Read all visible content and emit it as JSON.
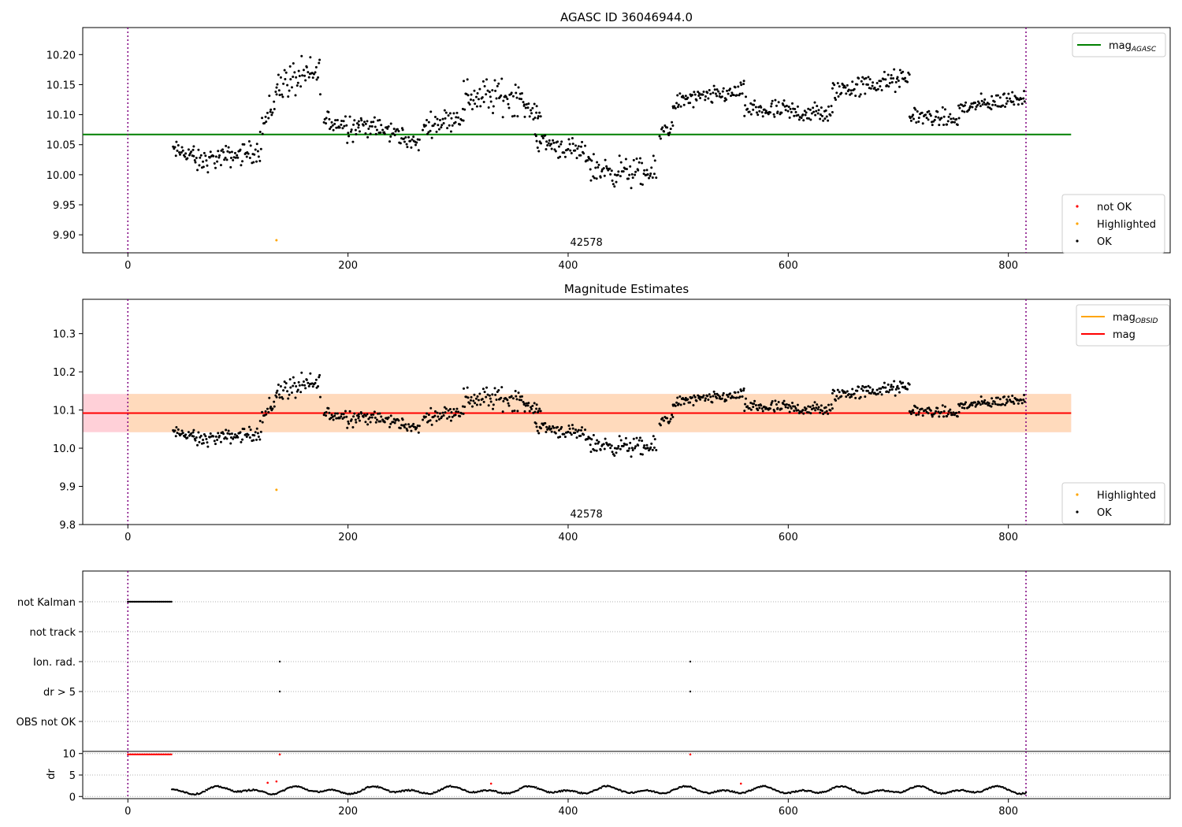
{
  "colors": {
    "ok": "#000000",
    "not_ok": "#ff0000",
    "highlighted": "#ffa500",
    "mag_agasc": "#008000",
    "mag_obsid": "#ffa500",
    "mag": "#ff0000",
    "band_outer": "#ffc0cb",
    "band_inner": "#ffdab9",
    "obs_line": "#800080",
    "grid": "#b0b0b0"
  },
  "chart_data": [
    {
      "type": "scatter",
      "title": "AGASC ID 36046944.0",
      "xlabel": "",
      "ylabel": "",
      "xlim": [
        -41,
        947
      ],
      "ylim": [
        9.87,
        10.245
      ],
      "xticks": [
        "0",
        "200",
        "400",
        "600",
        "800"
      ],
      "yticks": [
        "9.90",
        "9.95",
        "10.00",
        "10.05",
        "10.10",
        "10.15",
        "10.20"
      ],
      "obs_boundaries": [
        0,
        816
      ],
      "obsid_label": {
        "text": "42578",
        "x": 408
      },
      "mag_agasc": 10.067,
      "mag_agasc_x_range": [
        -41,
        857
      ],
      "legend_lines": [
        {
          "key": "mag_agasc",
          "label_main": "mag",
          "label_sub": "AGASC"
        }
      ],
      "legend_points": [
        {
          "key": "not_ok",
          "label": "not OK"
        },
        {
          "key": "highlighted",
          "label": "Highlighted"
        },
        {
          "key": "ok",
          "label": "OK"
        }
      ],
      "legend_lines_position": "upper-right",
      "legend_points_position": "lower-right",
      "highlighted_points": [
        {
          "x": 135,
          "y": 9.891
        }
      ],
      "ok_segments": [
        {
          "x": [
            41,
            60
          ],
          "y": [
            10.04,
            10.035
          ],
          "noise": 0.013
        },
        {
          "x": [
            60,
            120
          ],
          "y": [
            10.02,
            10.04
          ],
          "noise": 0.015
        },
        {
          "x": [
            120,
            135
          ],
          "y": [
            10.07,
            10.13
          ],
          "noise": 0.025
        },
        {
          "x": [
            135,
            175
          ],
          "y": [
            10.15,
            10.17
          ],
          "noise": 0.025
        },
        {
          "x": [
            178,
            210
          ],
          "y": [
            10.09,
            10.08
          ],
          "noise": 0.02
        },
        {
          "x": [
            210,
            250
          ],
          "y": [
            10.085,
            10.065
          ],
          "noise": 0.015
        },
        {
          "x": [
            250,
            265
          ],
          "y": [
            10.06,
            10.05
          ],
          "noise": 0.01
        },
        {
          "x": [
            268,
            305
          ],
          "y": [
            10.08,
            10.1
          ],
          "noise": 0.015
        },
        {
          "x": [
            305,
            360
          ],
          "y": [
            10.13,
            10.13
          ],
          "noise": 0.025
        },
        {
          "x": [
            360,
            375
          ],
          "y": [
            10.11,
            10.1
          ],
          "noise": 0.01
        },
        {
          "x": [
            370,
            420
          ],
          "y": [
            10.06,
            10.03
          ],
          "noise": 0.015
        },
        {
          "x": [
            420,
            480
          ],
          "y": [
            10.01,
            10.0
          ],
          "noise": 0.02
        },
        {
          "x": [
            483,
            495
          ],
          "y": [
            10.07,
            10.08
          ],
          "noise": 0.015
        },
        {
          "x": [
            495,
            560
          ],
          "y": [
            10.12,
            10.14
          ],
          "noise": 0.012
        },
        {
          "x": [
            560,
            640
          ],
          "y": [
            10.11,
            10.1
          ],
          "noise": 0.015
        },
        {
          "x": [
            640,
            710
          ],
          "y": [
            10.14,
            10.16
          ],
          "noise": 0.015
        },
        {
          "x": [
            710,
            755
          ],
          "y": [
            10.1,
            10.09
          ],
          "noise": 0.012
        },
        {
          "x": [
            755,
            815
          ],
          "y": [
            10.11,
            10.13
          ],
          "noise": 0.012
        }
      ]
    },
    {
      "type": "scatter",
      "title": "Magnitude Estimates",
      "xlabel": "",
      "ylabel": "",
      "xlim": [
        -41,
        947
      ],
      "ylim": [
        9.8,
        10.39
      ],
      "xticks": [
        "0",
        "200",
        "400",
        "600",
        "800"
      ],
      "yticks": [
        "9.8",
        "9.9",
        "10.0",
        "10.1",
        "10.2",
        "10.3"
      ],
      "obs_boundaries": [
        0,
        816
      ],
      "obsid_label": {
        "text": "42578",
        "x": 408
      },
      "mag": 10.092,
      "mag_band": [
        10.042,
        10.142
      ],
      "mag_x_range": [
        -41,
        857
      ],
      "mag_obsid_band": [
        10.042,
        10.142
      ],
      "mag_obsid_x_range": [
        0,
        857
      ],
      "legend_lines": [
        {
          "key": "mag_obsid",
          "label_main": "mag",
          "label_sub": "OBSID"
        },
        {
          "key": "mag",
          "label_main": "mag",
          "label_sub": ""
        }
      ],
      "legend_points": [
        {
          "key": "highlighted",
          "label": "Highlighted"
        },
        {
          "key": "ok",
          "label": "OK"
        }
      ],
      "legend_lines_position": "upper-right",
      "legend_points_position": "lower-right",
      "highlighted_points": [
        {
          "x": 135,
          "y": 9.891
        }
      ]
    },
    {
      "type": "scatter",
      "title": "",
      "xlabel": "",
      "ylabel": "",
      "xlim": [
        -41,
        947
      ],
      "flag_rows": [
        "not Kalman",
        "not track",
        "Ion. rad.",
        "dr > 5",
        "OBS not OK"
      ],
      "flags": {
        "not Kalman": {
          "x_range": [
            0,
            40
          ]
        },
        "not track": {
          "x": []
        },
        "Ion. rad.": {
          "x": [
            138,
            511
          ]
        },
        "dr > 5": {
          "x": [
            138,
            511
          ]
        },
        "OBS not OK": {
          "x": []
        }
      },
      "obs_boundaries": [
        0,
        816
      ]
    },
    {
      "type": "scatter",
      "title": "",
      "xlabel": "",
      "ylabel": "dr",
      "xlim": [
        -41,
        947
      ],
      "ylim": [
        -0.5,
        10.5
      ],
      "xticks": [
        "0",
        "200",
        "400",
        "600",
        "800"
      ],
      "yticks": [
        "0",
        "5",
        "10"
      ],
      "obs_boundaries": [
        0,
        816
      ],
      "dr_high": {
        "x_range": [
          0,
          40
        ],
        "y": 9.8,
        "extra_x": [
          138,
          511
        ]
      },
      "dr_red_points": [
        {
          "x": 127,
          "y": 3.2
        },
        {
          "x": 135,
          "y": 3.5
        },
        {
          "x": 330,
          "y": 3.0
        },
        {
          "x": 557,
          "y": 3.0
        }
      ],
      "dr_series": {
        "x_range": [
          40,
          816
        ],
        "base": 1.4,
        "amp": 1.0
      }
    }
  ]
}
